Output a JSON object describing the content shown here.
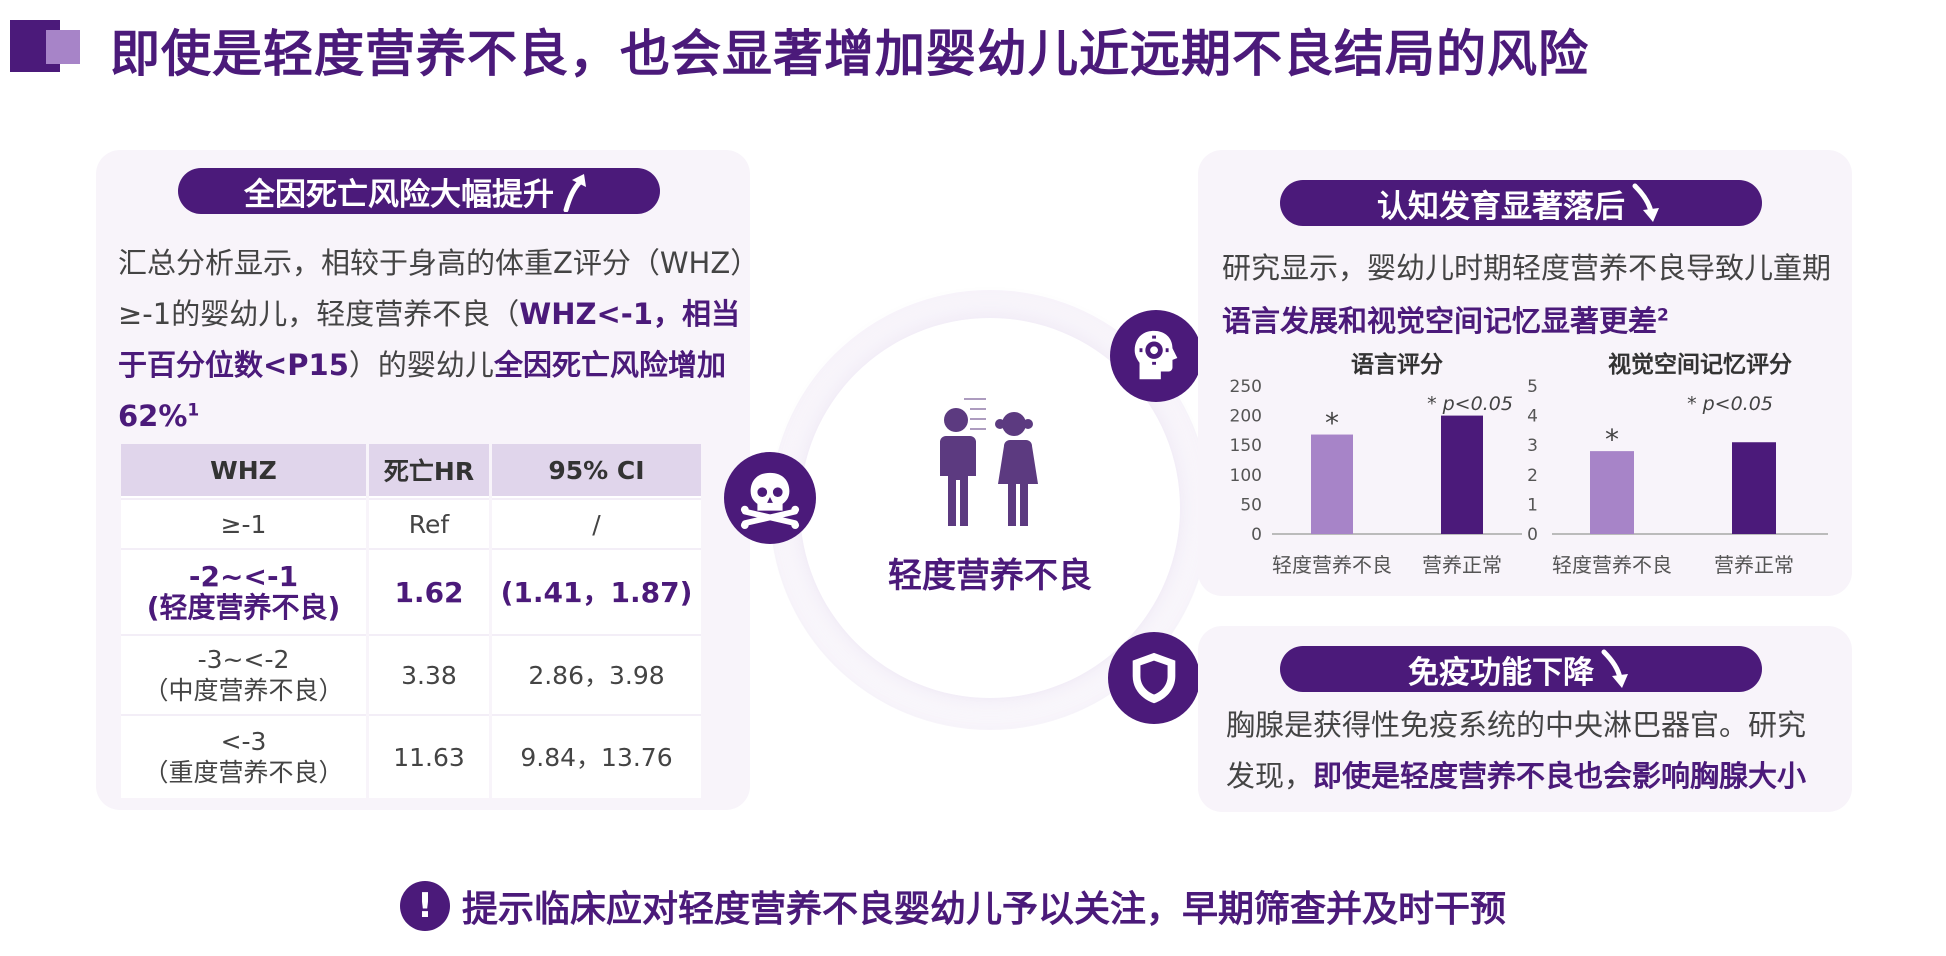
{
  "title": "即使是轻度营养不良，也会显著增加婴幼儿近远期不良结局的风险",
  "left": {
    "pill": "全因死亡风险大幅提升",
    "para": {
      "l1": "汇总分析显示，相较于身高的体重Z评分（WHZ）",
      "l2a": "≥-1的婴幼儿，轻度营养不良（",
      "l2b": "WHZ<-1，相当",
      "l3a": "于百分位数<P15",
      "l3b": "）的婴幼儿",
      "l3c": "全因死亡风险增加",
      "l4": "62%",
      "sup": "1"
    },
    "table": {
      "headers": [
        "WHZ",
        "死亡HR",
        "95% CI"
      ],
      "rows": [
        {
          "whz": "≥-1",
          "whz2": "",
          "hr": "Ref",
          "ci": "/"
        },
        {
          "whz": "-2~<-1",
          "whz2": "(轻度营养不良)",
          "hr": "1.62",
          "ci": "(1.41，1.87)"
        },
        {
          "whz": "-3~<-2",
          "whz2": "（中度营养不良）",
          "hr": "3.38",
          "ci": "2.86，3.98"
        },
        {
          "whz": "<-3",
          "whz2": "（重度营养不良）",
          "hr": "11.63",
          "ci": "9.84，13.76"
        }
      ]
    }
  },
  "center": {
    "label": "轻度营养不良"
  },
  "right_top": {
    "pill": "认知发育显著落后",
    "l1": "研究显示，婴幼儿时期轻度营养不良导致儿童期",
    "l2": "语言发展和视觉空间记忆显著更差",
    "sup": "2"
  },
  "chart_data": [
    {
      "type": "bar",
      "title": "语言评分",
      "categories": [
        "轻度营养不良",
        "营养正常"
      ],
      "values": [
        168,
        200
      ],
      "ylim": [
        0,
        250
      ],
      "yticks": [
        "0",
        "50",
        "100",
        "150",
        "200",
        "250"
      ],
      "annotation": "* p<0.05",
      "star": "*",
      "colors": [
        "#a784c8",
        "#4b1a7a"
      ]
    },
    {
      "type": "bar",
      "title": "视觉空间记忆评分",
      "categories": [
        "轻度营养不良",
        "营养正常"
      ],
      "values": [
        2.8,
        3.1
      ],
      "ylim": [
        0,
        5
      ],
      "yticks": [
        "0",
        "1",
        "2",
        "3",
        "4",
        "5"
      ],
      "annotation": "* p<0.05",
      "star": "*",
      "colors": [
        "#a784c8",
        "#4b1a7a"
      ]
    }
  ],
  "right_bottom": {
    "pill": "免疫功能下降",
    "l1": "胸腺是获得性免疫系统的中央淋巴器官。研究",
    "l2a": "发现，",
    "l2b": "即使是轻度营养不良也会影响胸腺大小"
  },
  "bottom": {
    "mark": "!",
    "text": "提示临床应对轻度营养不良婴幼儿予以关注，早期筛查并及时干预"
  },
  "icons": [
    "skull-icon",
    "brain-gear-icon",
    "shield-icon",
    "children-icon",
    "arrow-up-icon",
    "arrow-down-icon"
  ],
  "colors": {
    "primary": "#4b1a7a",
    "light": "#a784c8",
    "panel": "#f8f4fa"
  }
}
